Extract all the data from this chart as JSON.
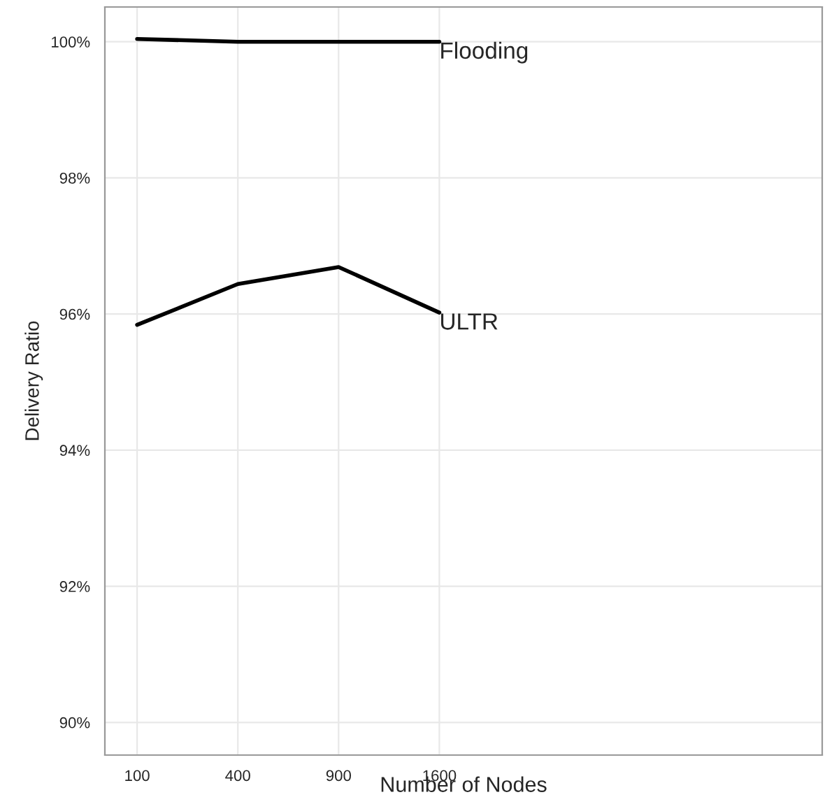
{
  "chart_data": {
    "type": "line",
    "xlabel": "Number of Nodes",
    "ylabel": "Delivery Ratio",
    "categories": [
      "100",
      "400",
      "900",
      "1600"
    ],
    "series": [
      {
        "name": "Flooding",
        "color": "#000000",
        "values": [
          100.04,
          100.0,
          100.0,
          100.0
        ]
      },
      {
        "name": "ULTR",
        "color": "#000000",
        "values": [
          95.84,
          96.44,
          96.69,
          96.02
        ]
      }
    ],
    "ylim": [
      89.52,
      100.51
    ],
    "yticks": [
      {
        "value": 90,
        "label": "90%"
      },
      {
        "value": 92,
        "label": "92%"
      },
      {
        "value": 94,
        "label": "94%"
      },
      {
        "value": 96,
        "label": "96%"
      },
      {
        "value": 98,
        "label": "98%"
      },
      {
        "value": 100,
        "label": "100%"
      }
    ],
    "grid": true,
    "legend": false,
    "marker": "none",
    "line_style": "solid"
  }
}
